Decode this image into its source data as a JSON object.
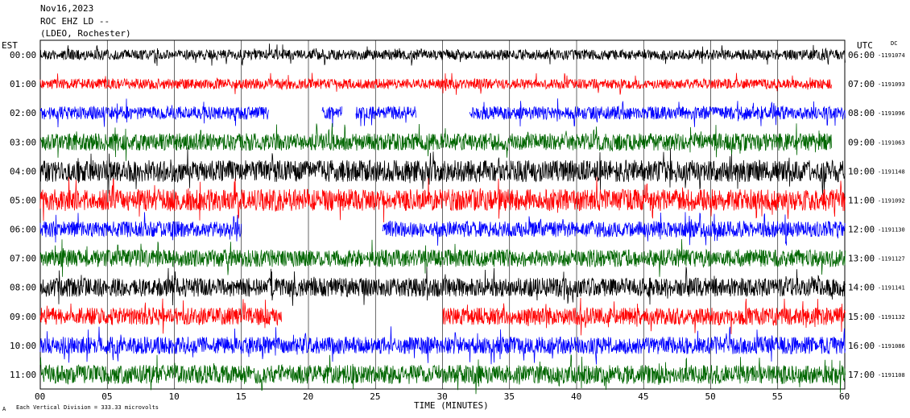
{
  "header": {
    "date": "Nov16,2023",
    "station": "ROC EHZ LD --",
    "network": "(LDEO, Rochester)"
  },
  "left_axis_label": "EST",
  "right_axis_label": "UTC",
  "dc_label": "DC",
  "footer": {
    "scale_note": "Each Vertical Division =  333.33 microvolts",
    "x_title": "TIME (MINUTES)"
  },
  "chart_data": {
    "type": "line",
    "title": "",
    "xlabel": "TIME (MINUTES)",
    "ylabel": "",
    "xlim": [
      0,
      60
    ],
    "x_ticks": [
      "00",
      "05",
      "10",
      "15",
      "20",
      "25",
      "30",
      "35",
      "40",
      "45",
      "50",
      "55",
      "60"
    ],
    "grid": true,
    "trace_colors": [
      "#000000",
      "#ff0000",
      "#0000ff",
      "#006600"
    ],
    "rows": [
      {
        "est": "00:00",
        "utc": "06:00",
        "dc": "-1191074",
        "amp": 0.35,
        "gaps": []
      },
      {
        "est": "01:00",
        "utc": "07:00",
        "dc": "-1191093",
        "amp": 0.35,
        "gaps": [
          [
            59,
            60
          ]
        ]
      },
      {
        "est": "02:00",
        "utc": "08:00",
        "dc": "-1191096",
        "amp": 0.45,
        "gaps": [
          [
            17,
            21
          ],
          [
            22.5,
            23.5
          ],
          [
            28,
            32
          ]
        ]
      },
      {
        "est": "03:00",
        "utc": "09:00",
        "dc": "-1191063",
        "amp": 0.6,
        "gaps": [
          [
            59,
            60
          ]
        ]
      },
      {
        "est": "04:00",
        "utc": "10:00",
        "dc": "-1191148",
        "amp": 0.75,
        "gaps": []
      },
      {
        "est": "05:00",
        "utc": "11:00",
        "dc": "-1191092",
        "amp": 0.75,
        "gaps": []
      },
      {
        "est": "06:00",
        "utc": "12:00",
        "dc": "-1191130",
        "amp": 0.55,
        "gaps": [
          [
            15,
            25.5
          ]
        ]
      },
      {
        "est": "07:00",
        "utc": "13:00",
        "dc": "-1191127",
        "amp": 0.6,
        "gaps": []
      },
      {
        "est": "08:00",
        "utc": "14:00",
        "dc": "-1191141",
        "amp": 0.65,
        "gaps": []
      },
      {
        "est": "09:00",
        "utc": "15:00",
        "dc": "-1191132",
        "amp": 0.6,
        "gaps": [
          [
            18,
            30
          ]
        ]
      },
      {
        "est": "10:00",
        "utc": "16:00",
        "dc": "-1191086",
        "amp": 0.6,
        "gaps": []
      },
      {
        "est": "11:00",
        "utc": "17:00",
        "dc": "-1191108",
        "amp": 0.65,
        "gaps": []
      }
    ]
  }
}
